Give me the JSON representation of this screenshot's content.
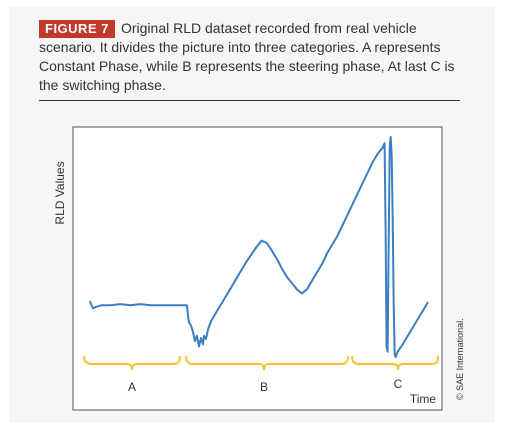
{
  "caption": {
    "figure_label": "FIGURE 7",
    "text": "Original RLD dataset recorded from real vehicle scenario. It divides the picture into three categories. A represents Constant Phase, while B represents the steering phase, At last C is the switching phase."
  },
  "copyright": "© SAE International.",
  "colors": {
    "figure_label_bg": "#c0392b",
    "line": "#3c7fc0",
    "bracket": "#f2c230"
  },
  "chart_data": {
    "type": "line",
    "title": "",
    "xlabel": "Time",
    "ylabel": "RLD Values",
    "axis_ticks_shown": false,
    "grid": false,
    "series": [
      {
        "x": [
          0,
          1,
          2,
          3,
          4,
          5,
          8,
          12,
          20,
          30,
          40,
          50,
          60,
          70,
          80,
          90,
          96,
          97,
          98,
          100,
          102,
          104,
          106,
          108,
          110,
          112,
          113,
          115,
          117,
          120,
          125,
          130,
          135,
          140,
          145,
          150,
          155,
          160,
          165,
          170,
          175,
          180,
          185,
          190,
          195,
          200,
          205,
          210,
          215,
          220,
          225,
          230,
          235,
          240,
          245,
          250,
          255,
          260,
          265,
          270,
          275,
          280,
          285,
          290,
          292,
          293,
          294,
          295,
          296,
          297,
          298,
          299,
          300,
          301,
          302,
          303,
          305,
          310,
          315,
          320,
          325,
          330,
          335
        ],
        "y": [
          0.53,
          0.5,
          0.48,
          0.46,
          0.46,
          0.47,
          0.48,
          0.49,
          0.49,
          0.5,
          0.49,
          0.5,
          0.49,
          0.49,
          0.49,
          0.49,
          0.49,
          0.4,
          0.33,
          0.3,
          0.24,
          0.15,
          0.2,
          0.1,
          0.18,
          0.12,
          0.2,
          0.17,
          0.26,
          0.34,
          0.42,
          0.5,
          0.58,
          0.66,
          0.74,
          0.82,
          0.9,
          0.97,
          1.04,
          1.1,
          1.08,
          1.01,
          0.93,
          0.84,
          0.76,
          0.7,
          0.64,
          0.6,
          0.64,
          0.72,
          0.8,
          0.88,
          0.98,
          1.06,
          1.14,
          1.24,
          1.34,
          1.44,
          1.54,
          1.64,
          1.74,
          1.84,
          1.92,
          1.98,
          2.02,
          1.2,
          0.1,
          0.05,
          1.1,
          1.98,
          2.08,
          1.9,
          1.3,
          0.5,
          0.02,
          0.0,
          0.05,
          0.12,
          0.2,
          0.28,
          0.36,
          0.44,
          0.52
        ]
      }
    ],
    "phases": [
      {
        "label": "A"
      },
      {
        "label": "B"
      },
      {
        "label": "C"
      }
    ]
  }
}
